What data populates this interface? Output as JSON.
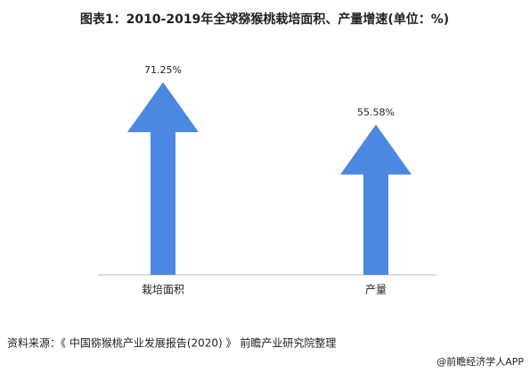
{
  "chart_data": {
    "type": "arrow",
    "title": "图表1：2010-2019年全球猕猴桃栽培面积、产量增速(单位：%)",
    "categories": [
      "栽培面积",
      "产量"
    ],
    "values": [
      71.25,
      55.58
    ],
    "value_labels": [
      "71.25%",
      "55.58%"
    ],
    "color": "#4a88e2",
    "source": "资料来源：《 中国猕猴桃产业发展报告(2020) 》 前瞻产业研究院整理",
    "brand": "@前瞻经济学人APP"
  }
}
